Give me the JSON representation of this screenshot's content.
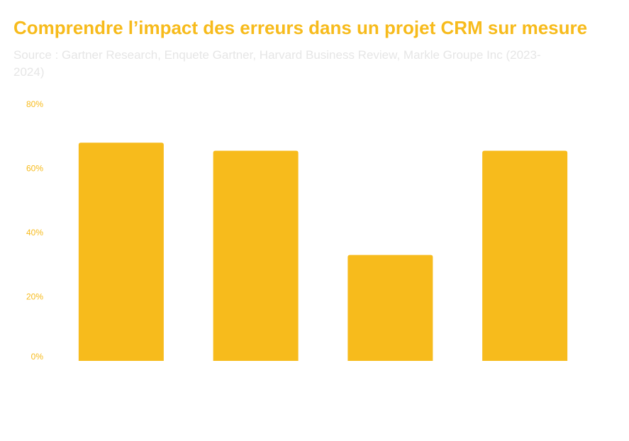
{
  "header": {
    "title": "Comprendre l’impact des erreurs dans un projet CRM sur mesure",
    "source": "Source : Gartner Research, Enquete Gartner, Harvard Business Review, Markle Groupe Inc (2023-2024)"
  },
  "colors": {
    "bar": "#f7bb1c",
    "title": "#f7bb1c",
    "source": "#e6e6e6",
    "tick_label": "#f7bb1c"
  },
  "chart_data": {
    "type": "bar",
    "categories": [
      "",
      "",
      "",
      ""
    ],
    "values": [
      68,
      65.5,
      33,
      65.5
    ],
    "ylim": [
      0,
      80
    ],
    "yticks": [
      "0%",
      "20%",
      "40%",
      "60%",
      "80%"
    ],
    "grid": false,
    "legend": "none"
  }
}
